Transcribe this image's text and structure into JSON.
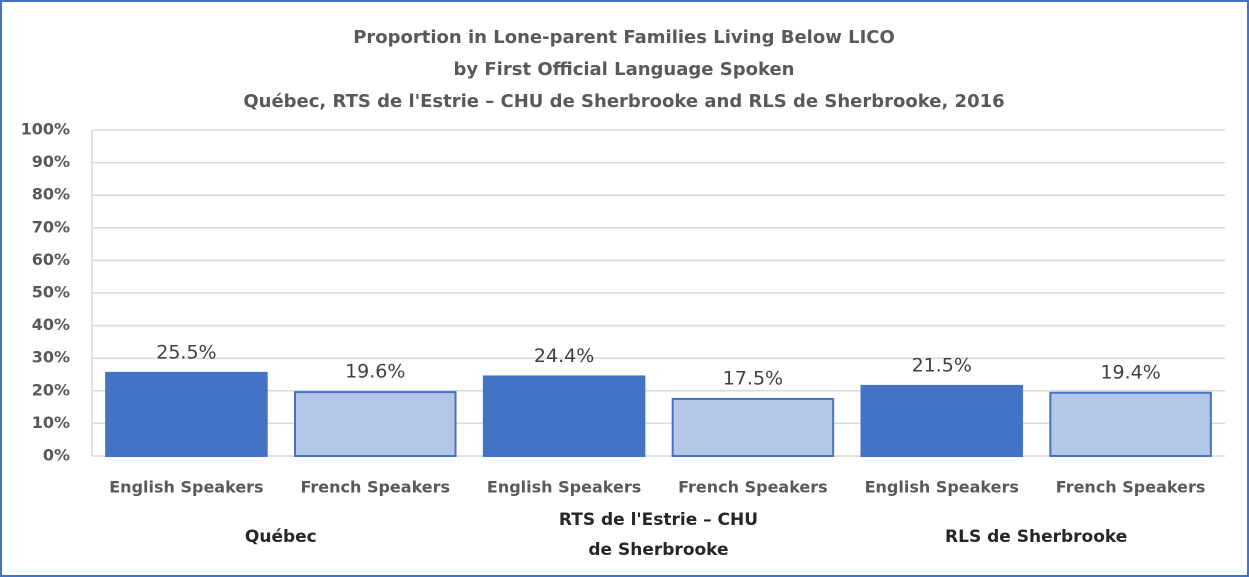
{
  "chart_data": {
    "type": "bar",
    "title": [
      "Proportion in Lone-parent Families Living Below LICO",
      "by First Official Language Spoken",
      "Québec, RTS de l'Estrie – CHU de Sherbrooke and RLS de Sherbrooke, 2016"
    ],
    "categories": [
      "Québec",
      "RTS de l'Estrie – CHU de Sherbrooke",
      "RLS de Sherbrooke"
    ],
    "series": [
      {
        "name": "English Speakers",
        "color": "#4472c4",
        "values": [
          25.5,
          24.4,
          21.5
        ],
        "value_labels": [
          "25.5%",
          "24.4%",
          "21.5%"
        ]
      },
      {
        "name": "French Speakers",
        "color": "#b4c7e7",
        "edge_color": "#4472c4",
        "values": [
          19.6,
          17.5,
          19.4
        ],
        "value_labels": [
          "19.6%",
          "17.5%",
          "19.4%"
        ]
      }
    ],
    "ylim": [
      0,
      100
    ],
    "yticks": [
      {
        "value": 0,
        "label": "0%"
      },
      {
        "value": 10,
        "label": "10%"
      },
      {
        "value": 20,
        "label": "20%"
      },
      {
        "value": 30,
        "label": "30%"
      },
      {
        "value": 40,
        "label": "40%"
      },
      {
        "value": 50,
        "label": "50%"
      },
      {
        "value": 60,
        "label": "60%"
      },
      {
        "value": 70,
        "label": "70%"
      },
      {
        "value": 80,
        "label": "80%"
      },
      {
        "value": 90,
        "label": "90%"
      },
      {
        "value": 100,
        "label": "100%"
      }
    ],
    "grid": true
  }
}
